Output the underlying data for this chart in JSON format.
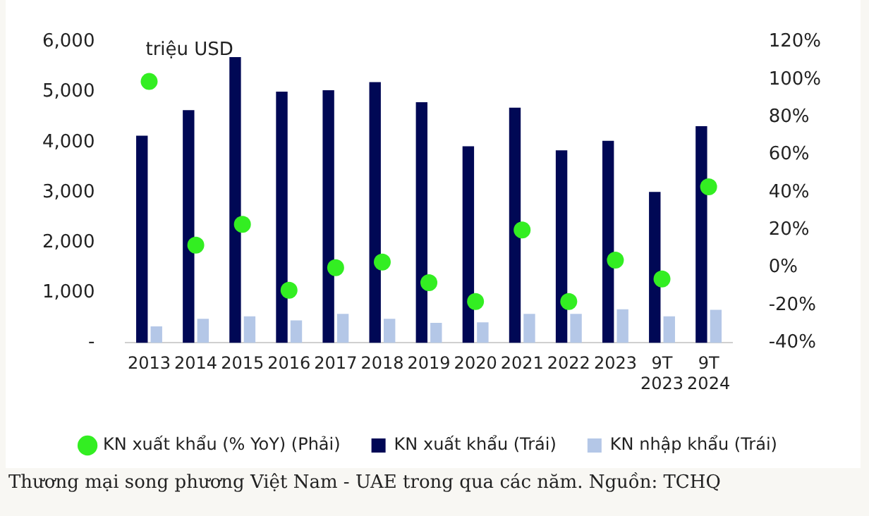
{
  "chart_data": {
    "type": "bar",
    "ylabel": "triệu USD",
    "categories": [
      "2013",
      "2014",
      "2015",
      "2016",
      "2017",
      "2018",
      "2019",
      "2020",
      "2021",
      "2022",
      "2023",
      "9T 2023",
      "9T 2024"
    ],
    "series": [
      {
        "name": "KN xuất khẩu (Trái)",
        "color": "#000855",
        "values": [
          4130,
          4640,
          5700,
          5010,
          5040,
          5200,
          4800,
          3920,
          4690,
          3840,
          4030,
          3010,
          4320
        ]
      },
      {
        "name": "KN nhập khẩu (Trái)",
        "color": "#b4c7e7",
        "values": [
          330,
          480,
          530,
          450,
          580,
          480,
          400,
          410,
          580,
          580,
          670,
          530,
          660
        ]
      },
      {
        "name": "KN xuất khẩu (% YoY) (Phải)",
        "type": "scatter",
        "axis": "y2",
        "color": "#33ee22",
        "marker": "circle",
        "values": [
          99,
          12,
          23,
          -12,
          0,
          3,
          -8,
          -18,
          20,
          -18,
          4,
          -6,
          43
        ]
      }
    ],
    "ylim": [
      0,
      6000
    ],
    "yticks": [
      {
        "value": 0,
        "label": "-"
      },
      {
        "value": 1000,
        "label": "1,000"
      },
      {
        "value": 2000,
        "label": "2,000"
      },
      {
        "value": 3000,
        "label": "3,000"
      },
      {
        "value": 4000,
        "label": "4,000"
      },
      {
        "value": 5000,
        "label": "5,000"
      },
      {
        "value": 6000,
        "label": "6,000"
      }
    ],
    "y2lim": [
      -40,
      120
    ],
    "y2ticks": [
      {
        "value": -40,
        "label": "-40%"
      },
      {
        "value": -20,
        "label": "-20%"
      },
      {
        "value": 0,
        "label": "0%"
      },
      {
        "value": 20,
        "label": "20%"
      },
      {
        "value": 40,
        "label": "40%"
      },
      {
        "value": 60,
        "label": "60%"
      },
      {
        "value": 80,
        "label": "80%"
      },
      {
        "value": 100,
        "label": "100%"
      },
      {
        "value": 120,
        "label": "120%"
      }
    ],
    "grid": false,
    "legend": "bottom",
    "annotations": [
      "Thương mại song phương Việt Nam - UAE trong qua các năm. Nguồn: TCHQ"
    ]
  }
}
